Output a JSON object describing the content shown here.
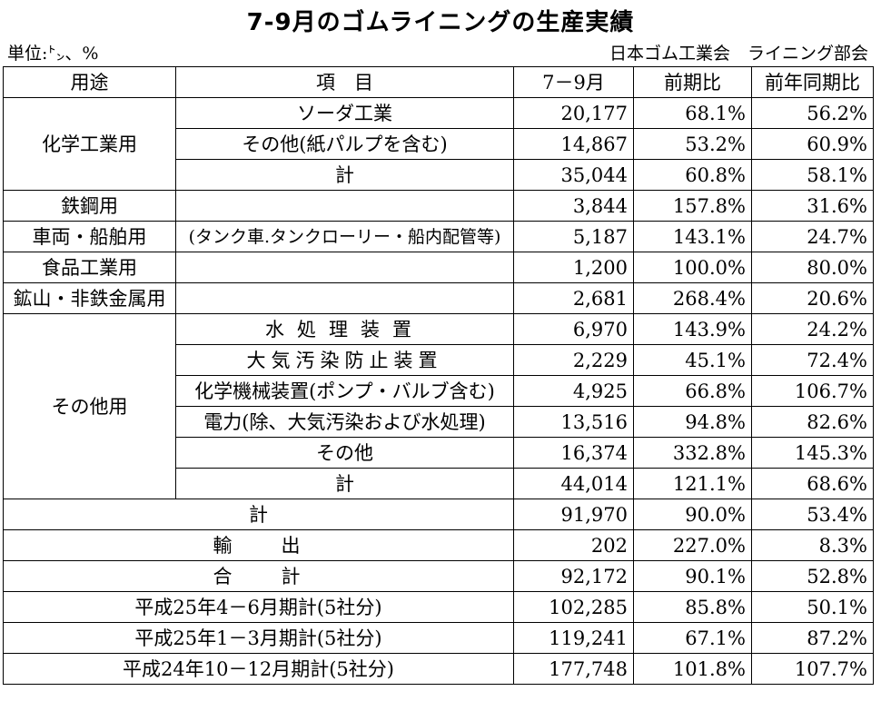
{
  "title": "7-9月のゴムライニングの生産実績",
  "unit": "単位:㌧、%",
  "org": "日本ゴム工業会　ライニング部会",
  "headers": {
    "use": "用途",
    "item": "項　目",
    "period": "7－9月",
    "prev": "前期比",
    "yoy": "前年同期比"
  },
  "groups": {
    "chem": "化学工業用",
    "steel": "鉄鋼用",
    "vehicle": "車両・船舶用",
    "food": "食品工業用",
    "mining": "鉱山・非鉄金属用",
    "other": "その他用"
  },
  "rows": [
    {
      "item": "ソーダ工業",
      "val": "20,177",
      "prev": "68.1%",
      "yoy": "56.2%"
    },
    {
      "item": "その他(紙パルプを含む)",
      "val": "14,867",
      "prev": "53.2%",
      "yoy": "60.9%"
    },
    {
      "item": "計",
      "val": "35,044",
      "prev": "60.8%",
      "yoy": "58.1%"
    },
    {
      "item": "",
      "val": "3,844",
      "prev": "157.8%",
      "yoy": "31.6%"
    },
    {
      "item": "(タンク車.タンクローリー・船内配管等)",
      "val": "5,187",
      "prev": "143.1%",
      "yoy": "24.7%"
    },
    {
      "item": "",
      "val": "1,200",
      "prev": "100.0%",
      "yoy": "80.0%"
    },
    {
      "item": "",
      "val": "2,681",
      "prev": "268.4%",
      "yoy": "20.6%"
    },
    {
      "item": "水処理装置",
      "val": "6,970",
      "prev": "143.9%",
      "yoy": "24.2%"
    },
    {
      "item": "大気汚染防止装置",
      "val": "2,229",
      "prev": "45.1%",
      "yoy": "72.4%"
    },
    {
      "item": "化学機械装置(ポンプ・バルブ含む)",
      "val": "4,925",
      "prev": "66.8%",
      "yoy": "106.7%"
    },
    {
      "item": "電力(除、大気汚染および水処理)",
      "val": "13,516",
      "prev": "94.8%",
      "yoy": "82.6%"
    },
    {
      "item": "その他",
      "val": "16,374",
      "prev": "332.8%",
      "yoy": "145.3%"
    },
    {
      "item": "計",
      "val": "44,014",
      "prev": "121.1%",
      "yoy": "68.6%"
    }
  ],
  "summary": [
    {
      "label": "計",
      "val": "91,970",
      "prev": "90.0%",
      "yoy": "53.4%"
    },
    {
      "label": "輸　　出",
      "val": "202",
      "prev": "227.0%",
      "yoy": "8.3%"
    },
    {
      "label": "合　　計",
      "val": "92,172",
      "prev": "90.1%",
      "yoy": "52.8%"
    },
    {
      "label": "平成25年4－6月期計(5社分)",
      "val": "102,285",
      "prev": "85.8%",
      "yoy": "50.1%"
    },
    {
      "label": "平成25年1－3月期計(5社分)",
      "val": "119,241",
      "prev": "67.1%",
      "yoy": "87.2%"
    },
    {
      "label": "平成24年10－12月期計(5社分)",
      "val": "177,748",
      "prev": "101.8%",
      "yoy": "107.7%"
    }
  ]
}
